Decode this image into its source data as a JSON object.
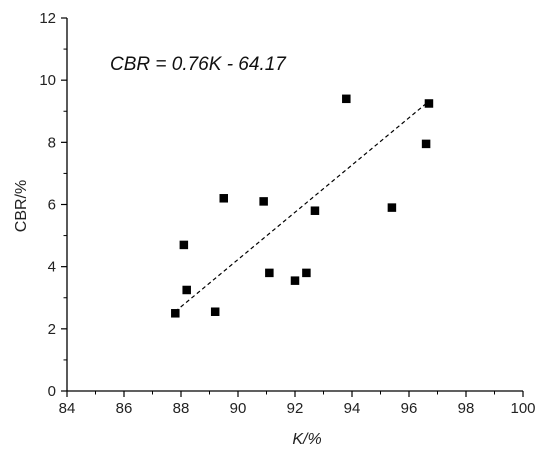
{
  "chart_data": {
    "type": "scatter",
    "xlabel": "K/%",
    "ylabel": "CBR/%",
    "xlim": [
      84,
      100
    ],
    "ylim": [
      0,
      12
    ],
    "x_ticks": [
      84,
      86,
      88,
      90,
      92,
      94,
      96,
      98,
      100
    ],
    "y_ticks": [
      0,
      2,
      4,
      6,
      8,
      10,
      12
    ],
    "grid": false,
    "annotation": "CBR = 0.76K - 64.17",
    "marker_color": "#000000",
    "fit_line": {
      "slope": 0.76,
      "intercept": -64.17,
      "x_range": [
        87.8,
        96.7
      ],
      "style": "dashed",
      "color": "#000000"
    },
    "series": [
      {
        "x": [
          87.8,
          88.1,
          88.2,
          89.2,
          89.5,
          90.9,
          91.1,
          92.0,
          92.4,
          92.7,
          93.8,
          95.4,
          96.6,
          96.7
        ],
        "y": [
          2.5,
          4.7,
          3.25,
          2.55,
          6.2,
          6.1,
          3.8,
          3.55,
          3.8,
          5.8,
          9.4,
          5.9,
          7.95,
          9.25
        ]
      }
    ]
  }
}
